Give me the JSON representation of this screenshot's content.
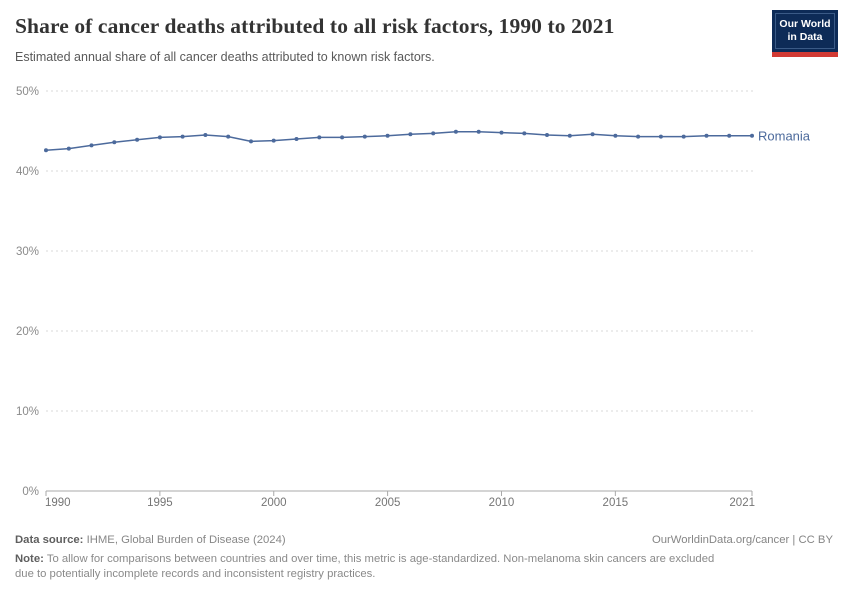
{
  "header": {
    "title": "Share of cancer deaths attributed to all risk factors, 1990 to 2021",
    "subtitle": "Estimated annual share of all cancer deaths attributed to known risk factors.",
    "logo": {
      "line1": "Our World",
      "line2": "in Data"
    }
  },
  "chart_data": {
    "type": "line",
    "title": "Share of cancer deaths attributed to all risk factors, 1990 to 2021",
    "x": [
      1990,
      1991,
      1992,
      1993,
      1994,
      1995,
      1996,
      1997,
      1998,
      1999,
      2000,
      2001,
      2002,
      2003,
      2004,
      2005,
      2006,
      2007,
      2008,
      2009,
      2010,
      2011,
      2012,
      2013,
      2014,
      2015,
      2016,
      2017,
      2018,
      2019,
      2020,
      2021
    ],
    "series": [
      {
        "name": "Romania",
        "color": "#4c6a9c",
        "values": [
          42.6,
          42.8,
          43.2,
          43.6,
          43.9,
          44.2,
          44.3,
          44.5,
          44.3,
          43.7,
          43.8,
          44.0,
          44.2,
          44.2,
          44.3,
          44.4,
          44.6,
          44.7,
          44.9,
          44.9,
          44.8,
          44.7,
          44.5,
          44.4,
          44.6,
          44.4,
          44.3,
          44.3,
          44.3,
          44.4,
          44.4,
          44.4
        ]
      }
    ],
    "xlabel": "",
    "ylabel": "",
    "xlim": [
      1990,
      2021
    ],
    "ylim": [
      0,
      50
    ],
    "x_ticks": [
      1990,
      1995,
      2000,
      2005,
      2010,
      2015,
      2021
    ],
    "y_ticks": [
      0,
      10,
      20,
      30,
      40,
      50
    ],
    "y_tick_suffix": "%",
    "grid": "horizontal-dashed",
    "legend": "series-end-label",
    "entity_label": "Romania"
  },
  "colors": {
    "series": "#4c6a9c",
    "gridline": "#dadada",
    "axis": "#a9a9a9",
    "y_tick_label": "#8a8a8a",
    "x_tick_label": "#757575",
    "logo_bg": "#0d2b57",
    "logo_red": "#d23a34"
  },
  "footer": {
    "source_label": "Data source:",
    "source_text": "IHME, Global Burden of Disease (2024)",
    "link_text": "OurWorldinData.org/cancer | CC BY",
    "note_label": "Note:",
    "note_text": "To allow for comparisons between countries and over time, this metric is age-standardized. Non-melanoma skin cancers are excluded due to potentially incomplete records and inconsistent registry practices."
  }
}
